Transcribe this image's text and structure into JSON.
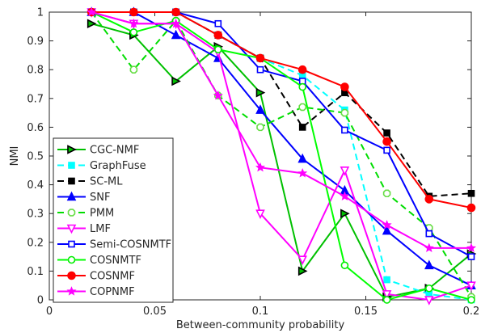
{
  "chart_data": {
    "type": "line",
    "title": "",
    "xlabel": "Between-community probability",
    "ylabel": "NMI",
    "xlim": [
      0,
      0.2
    ],
    "ylim": [
      0,
      1
    ],
    "xticks": [
      0,
      0.05,
      0.1,
      0.15,
      0.2
    ],
    "xtick_labels": [
      "0",
      "0.05",
      "0.1",
      "0.15",
      "0.2"
    ],
    "yticks": [
      0,
      0.1,
      0.2,
      0.3,
      0.4,
      0.5,
      0.6,
      0.7,
      0.8,
      0.9,
      1
    ],
    "ytick_labels": [
      "0",
      "0.1",
      "0.2",
      "0.3",
      "0.4",
      "0.5",
      "0.6",
      "0.7",
      "0.8",
      "0.9",
      "1"
    ],
    "grid": false,
    "legend_position": "bottom-left",
    "x": [
      0.02,
      0.04,
      0.06,
      0.08,
      0.1,
      0.12,
      0.14,
      0.16,
      0.18,
      0.2
    ],
    "series": [
      {
        "name": "CGC-NMF",
        "color": "#00c000",
        "marker_color": "#000000",
        "dash": "solid",
        "marker": "triangle-right",
        "values": [
          0.96,
          0.92,
          0.76,
          0.88,
          0.72,
          0.1,
          0.3,
          0.01,
          0.04,
          0.16
        ]
      },
      {
        "name": "GraphFuse",
        "color": "#00ffff",
        "marker_color": "#00ffff",
        "dash": "dashed",
        "marker": "square-filled",
        "values": [
          1.0,
          1.0,
          1.0,
          0.92,
          0.84,
          0.78,
          0.66,
          0.07,
          0.02,
          0.0
        ]
      },
      {
        "name": "SC-ML",
        "color": "#000000",
        "marker_color": "#000000",
        "dash": "dashed",
        "marker": "square-filled",
        "values": [
          1.0,
          1.0,
          1.0,
          0.92,
          0.84,
          0.6,
          0.72,
          0.58,
          0.36,
          0.37
        ]
      },
      {
        "name": "SNF",
        "color": "#0000ff",
        "marker_color": "#0000ff",
        "dash": "solid",
        "marker": "triangle-up",
        "values": [
          1.0,
          1.0,
          0.92,
          0.84,
          0.66,
          0.49,
          0.38,
          0.24,
          0.12,
          0.05
        ]
      },
      {
        "name": "PMM",
        "color": "#00dd00",
        "marker_color": "#66dd44",
        "dash": "dashed",
        "marker": "octagon",
        "values": [
          1.0,
          0.8,
          0.97,
          0.71,
          0.6,
          0.67,
          0.65,
          0.37,
          0.25,
          0.01
        ]
      },
      {
        "name": "LMF",
        "color": "#ff00ff",
        "marker_color": "#ff00ff",
        "dash": "solid",
        "marker": "triangle-down",
        "values": [
          1.0,
          0.96,
          0.96,
          0.86,
          0.3,
          0.14,
          0.45,
          0.02,
          0.0,
          0.05
        ]
      },
      {
        "name": "Semi-COSNMTF",
        "color": "#0000ff",
        "marker_color": "#0000ff",
        "dash": "solid",
        "marker": "square-open",
        "values": [
          1.0,
          1.0,
          1.0,
          0.96,
          0.8,
          0.76,
          0.59,
          0.52,
          0.23,
          0.15
        ]
      },
      {
        "name": "COSNMTF",
        "color": "#00ff00",
        "marker_color": "#00ee00",
        "dash": "solid",
        "marker": "circle-open",
        "values": [
          1.0,
          0.93,
          0.97,
          0.87,
          0.84,
          0.74,
          0.12,
          0.0,
          0.04,
          0.0
        ]
      },
      {
        "name": "COSNMF",
        "color": "#ff0000",
        "marker_color": "#ff0000",
        "dash": "solid",
        "marker": "circle-filled",
        "values": [
          1.0,
          1.0,
          1.0,
          0.92,
          0.84,
          0.8,
          0.74,
          0.55,
          0.35,
          0.32
        ]
      },
      {
        "name": "COPNMF",
        "color": "#ff00ff",
        "marker_color": "#ff00ff",
        "dash": "solid",
        "marker": "star",
        "values": [
          1.0,
          0.96,
          0.96,
          0.71,
          0.46,
          0.44,
          0.36,
          0.26,
          0.18,
          0.18
        ]
      }
    ]
  }
}
